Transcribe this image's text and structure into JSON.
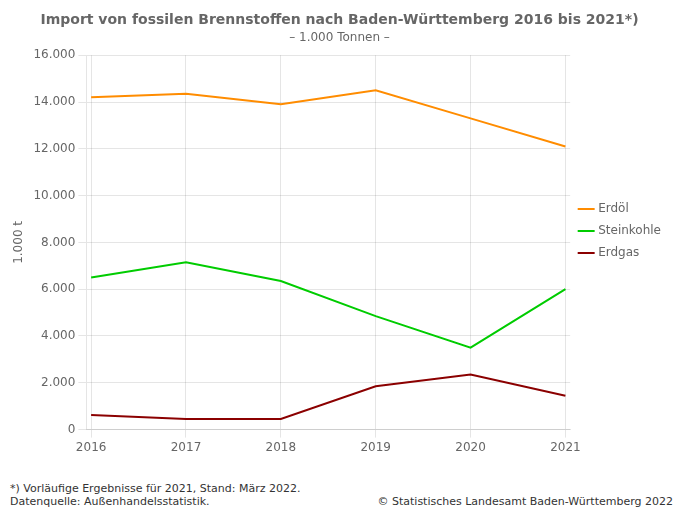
{
  "chart_data": {
    "type": "line",
    "title": "Import von fossilen Brennstoffen nach Baden-Württemberg 2016 bis 2021*)",
    "subtitle": "– 1.000 Tonnen –",
    "ylabel": "1.000 t",
    "x": [
      2016,
      2017,
      2018,
      2019,
      2020,
      2021
    ],
    "series": [
      {
        "name": "Erdöl",
        "color": "#FF8C00",
        "values": [
          14200,
          14350,
          13900,
          14500,
          13300,
          12100
        ]
      },
      {
        "name": "Steinkohle",
        "color": "#00CC00",
        "values": [
          6500,
          7150,
          6350,
          4850,
          3500,
          6000
        ]
      },
      {
        "name": "Erdgas",
        "color": "#8B0000",
        "values": [
          620,
          450,
          450,
          1850,
          2350,
          1450
        ]
      }
    ],
    "xlim": [
      2015.95,
      2021.05
    ],
    "xticks": [
      2016,
      2017,
      2018,
      2019,
      2020,
      2021
    ],
    "ylim": [
      0,
      16000
    ],
    "yticks": [
      0,
      {
        "value": 2000,
        "label": "2.000"
      },
      {
        "value": 4000,
        "label": "4.000"
      },
      {
        "value": 6000,
        "label": "6.000"
      },
      {
        "value": 8000,
        "label": "8.000"
      },
      {
        "value": 10000,
        "label": "10.000"
      },
      {
        "value": 12000,
        "label": "12.000"
      },
      {
        "value": 14000,
        "label": "14.000"
      },
      {
        "value": 16000,
        "label": "16.000"
      }
    ],
    "grid": true,
    "legend": "right",
    "annotations": [
      "*) Vorläufige Ergebnisse für 2021, Stand: März 2022.\nDatenquelle: Außenhandelsstatistik.",
      "© Statistisches Landesamt Baden-Württemberg 2022"
    ]
  }
}
